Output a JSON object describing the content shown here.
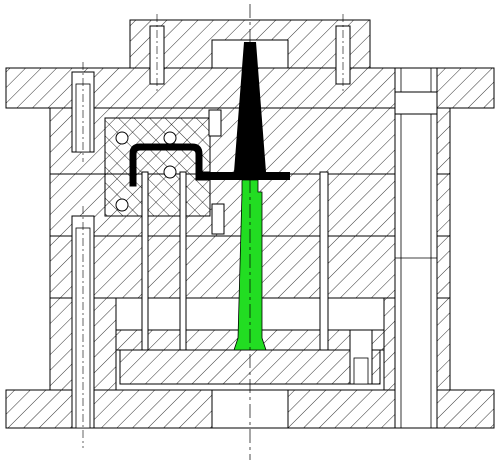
{
  "drawing": {
    "type": "injection mold assembly cross-section",
    "colors": {
      "background": "#ffffff",
      "outline": "#000000",
      "hatch": "#000000",
      "sprue": "#000000",
      "runner_ejector": "#22dd22",
      "centerline": "#000000"
    },
    "icons": [
      "socket-head-screw-icon",
      "guide-pillar-icon",
      "ejector-pin-icon"
    ]
  }
}
